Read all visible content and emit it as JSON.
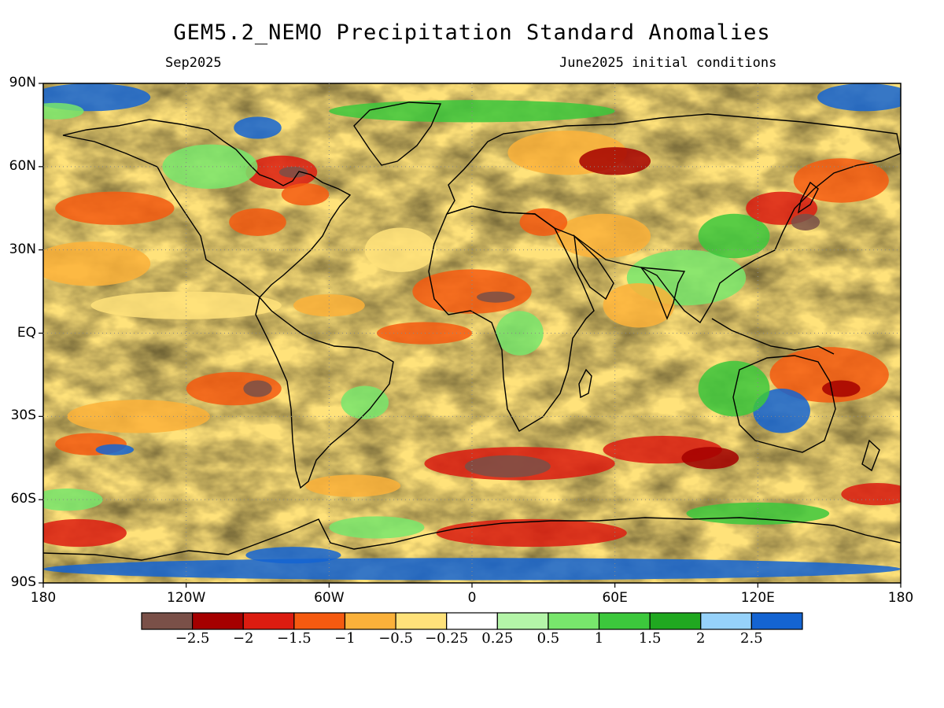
{
  "title": "GEM5.2_NEMO Precipitation Standard Anomalies",
  "subtitle_left": "Sep2025",
  "subtitle_right": "June2025 initial conditions",
  "lat_labels": [
    "90N",
    "60N",
    "30N",
    "EQ",
    "30S",
    "60S",
    "90S"
  ],
  "lat_values": [
    90,
    60,
    30,
    0,
    -30,
    -60,
    -90
  ],
  "lon_labels": [
    "180",
    "120W",
    "60W",
    "0",
    "60E",
    "120E",
    "180"
  ],
  "lon_values": [
    -180,
    -120,
    -60,
    0,
    60,
    120,
    180
  ],
  "colorbar": {
    "colors": [
      "#7a5048",
      "#a50000",
      "#dc1c10",
      "#f55a10",
      "#fbb13a",
      "#ffe27a",
      "#ffffff",
      "#b4f5a8",
      "#78e66c",
      "#3cc83c",
      "#20a820",
      "#96d2fa",
      "#1464d2"
    ],
    "labels": [
      "−2.5",
      "−2",
      "−1.5",
      "−1",
      "−0.5",
      "−0.25",
      "0.25",
      "0.5",
      "1",
      "1.5",
      "2",
      "2.5"
    ]
  }
}
